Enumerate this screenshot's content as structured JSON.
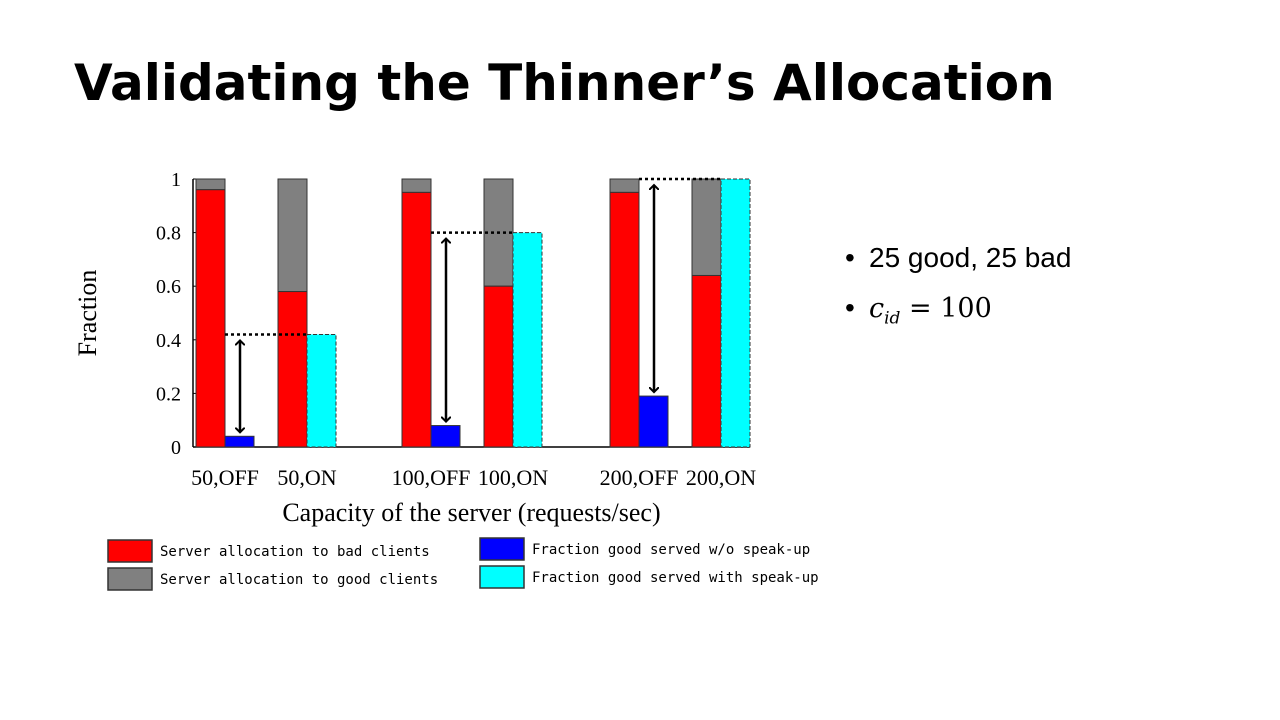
{
  "title": "Validating the Thinner’s Allocation",
  "bullets": [
    {
      "text": "25 good, 25 bad"
    },
    {
      "var": "c",
      "sub": "id",
      "rest": "= 100"
    }
  ],
  "colors": {
    "bad": "#ff0000",
    "good": "#808080",
    "no_speakup": "#0000ff",
    "speakup": "#00ffff"
  },
  "chart_data": {
    "type": "bar",
    "xlabel": "Capacity of the server (requests/sec)",
    "ylabel": "Fraction",
    "ylim": [
      0,
      1
    ],
    "yticks": [
      "0",
      "0.2",
      "0.4",
      "0.6",
      "0.8",
      "1"
    ],
    "groups": [
      {
        "label": "50,OFF",
        "bad": 0.96,
        "good": 0.04,
        "served": 0.04,
        "served_series": "no_speakup"
      },
      {
        "label": "50,ON",
        "bad": 0.58,
        "good": 0.42,
        "served": 0.42,
        "served_series": "speakup"
      },
      {
        "label": "100,OFF",
        "bad": 0.95,
        "good": 0.05,
        "served": 0.08,
        "served_series": "no_speakup"
      },
      {
        "label": "100,ON",
        "bad": 0.6,
        "good": 0.4,
        "served": 0.8,
        "served_series": "speakup"
      },
      {
        "label": "200,OFF",
        "bad": 0.95,
        "good": 0.05,
        "served": 0.19,
        "served_series": "no_speakup"
      },
      {
        "label": "200,ON",
        "bad": 0.64,
        "good": 0.36,
        "served": 1.0,
        "served_series": "speakup"
      }
    ],
    "legend": [
      {
        "key": "bad",
        "label": "Server allocation to bad clients"
      },
      {
        "key": "good",
        "label": "Server allocation to good clients"
      },
      {
        "key": "no_speakup",
        "label": "Fraction good served w/o speak-up"
      },
      {
        "key": "speakup",
        "label": "Fraction good served with speak-up"
      }
    ],
    "grid": false,
    "legend_position": "bottom"
  }
}
